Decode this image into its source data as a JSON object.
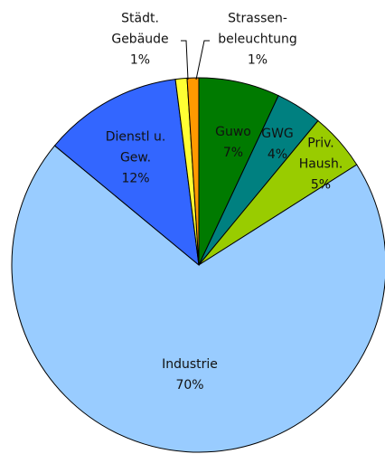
{
  "chart_data": {
    "type": "pie",
    "categories": [
      "Guwo",
      "GWG",
      "Priv. Haush.",
      "Industrie",
      "Dienstl u. Gew.",
      "Städt. Gebäude",
      "Strassen-beleuchtung"
    ],
    "values": [
      7,
      4,
      5,
      70,
      12,
      1,
      1
    ],
    "value_labels": [
      "7%",
      "4%",
      "5%",
      "70%",
      "12%",
      "1%",
      "1%"
    ],
    "colors": [
      "#007a00",
      "#008080",
      "#99cc00",
      "#99ccff",
      "#3366ff",
      "#ffff33",
      "#ff9900"
    ]
  }
}
